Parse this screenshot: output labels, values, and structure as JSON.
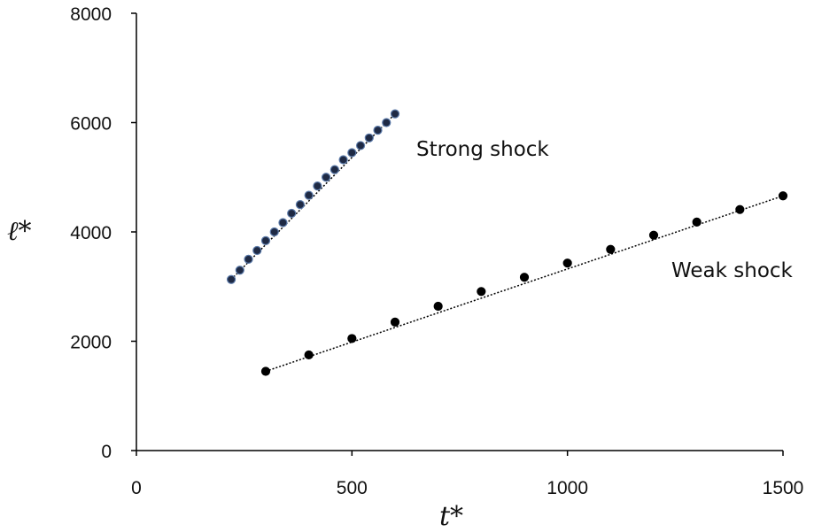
{
  "chart_data": {
    "type": "scatter",
    "title": "",
    "xlabel": "t*",
    "ylabel": "ℓ*",
    "xlim": [
      0,
      1500
    ],
    "ylim": [
      0,
      8000
    ],
    "xticks": [
      0,
      500,
      1000,
      1500
    ],
    "yticks": [
      0,
      2000,
      4000,
      6000,
      8000
    ],
    "grid": false,
    "series": [
      {
        "color": "#1f2a44",
        "marker_outline": "#5a79a8",
        "trendline": "dotted",
        "points": [
          {
            "x": 220,
            "y": 3130
          },
          {
            "x": 240,
            "y": 3300
          },
          {
            "x": 260,
            "y": 3500
          },
          {
            "x": 280,
            "y": 3660
          },
          {
            "x": 300,
            "y": 3840
          },
          {
            "x": 320,
            "y": 4000
          },
          {
            "x": 340,
            "y": 4170
          },
          {
            "x": 360,
            "y": 4340
          },
          {
            "x": 380,
            "y": 4500
          },
          {
            "x": 400,
            "y": 4670
          },
          {
            "x": 420,
            "y": 4840
          },
          {
            "x": 440,
            "y": 5000
          },
          {
            "x": 460,
            "y": 5140
          },
          {
            "x": 480,
            "y": 5320
          },
          {
            "x": 500,
            "y": 5450
          },
          {
            "x": 520,
            "y": 5580
          },
          {
            "x": 540,
            "y": 5720
          },
          {
            "x": 560,
            "y": 5860
          },
          {
            "x": 580,
            "y": 6000
          },
          {
            "x": 600,
            "y": 6160
          }
        ]
      },
      {
        "color": "#000000",
        "marker_outline": "#000000",
        "trendline": "dotted",
        "points": [
          {
            "x": 300,
            "y": 1450
          },
          {
            "x": 400,
            "y": 1750
          },
          {
            "x": 500,
            "y": 2050
          },
          {
            "x": 600,
            "y": 2350
          },
          {
            "x": 700,
            "y": 2640
          },
          {
            "x": 800,
            "y": 2910
          },
          {
            "x": 900,
            "y": 3170
          },
          {
            "x": 1000,
            "y": 3430
          },
          {
            "x": 1100,
            "y": 3680
          },
          {
            "x": 1200,
            "y": 3940
          },
          {
            "x": 1300,
            "y": 4180
          },
          {
            "x": 1400,
            "y": 4410
          },
          {
            "x": 1500,
            "y": 4660
          }
        ]
      }
    ],
    "annotations": [
      {
        "text": "Strong shock",
        "anchor": "right of strong shock series"
      },
      {
        "text": "Weak shock",
        "anchor": "below right end of weak shock series"
      }
    ]
  }
}
